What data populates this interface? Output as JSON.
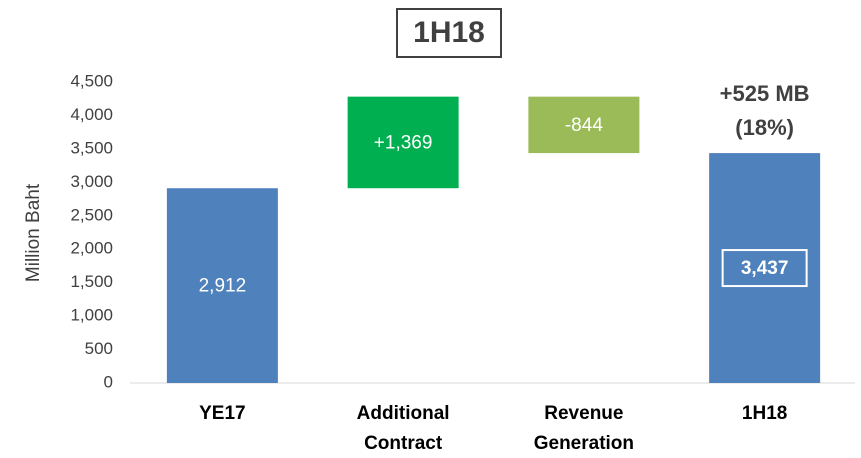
{
  "chart_data": {
    "type": "waterfall",
    "title": "1H18",
    "y_label": "Million Baht",
    "categories": [
      "YE17",
      "Additional Contract",
      "Revenue Generation",
      "1H18"
    ],
    "values": [
      2912,
      1369,
      -844,
      3437
    ],
    "value_labels": [
      "2,912",
      "+1,369",
      "-844",
      "3,437"
    ],
    "is_total": [
      true,
      false,
      false,
      true
    ],
    "colors": [
      "#4f81bd",
      "#00b050",
      "#9bbb59",
      "#4f81bd"
    ],
    "annotation": [
      "+525 MB",
      "(18%)"
    ],
    "ylim": [
      0,
      4500
    ],
    "yticks": [
      0,
      {
        "value": 500,
        "label": "500"
      },
      {
        "value": 1000,
        "label": "1,000"
      },
      {
        "value": 1500,
        "label": "1,500"
      },
      {
        "value": 2000,
        "label": "2,000"
      },
      {
        "value": 2500,
        "label": "2,500"
      },
      {
        "value": 3000,
        "label": "3,000"
      },
      {
        "value": 3500,
        "label": "3,500"
      },
      {
        "value": 4000,
        "label": "4,000"
      },
      {
        "value": 4500,
        "label": "4,500"
      }
    ],
    "grid": false
  }
}
